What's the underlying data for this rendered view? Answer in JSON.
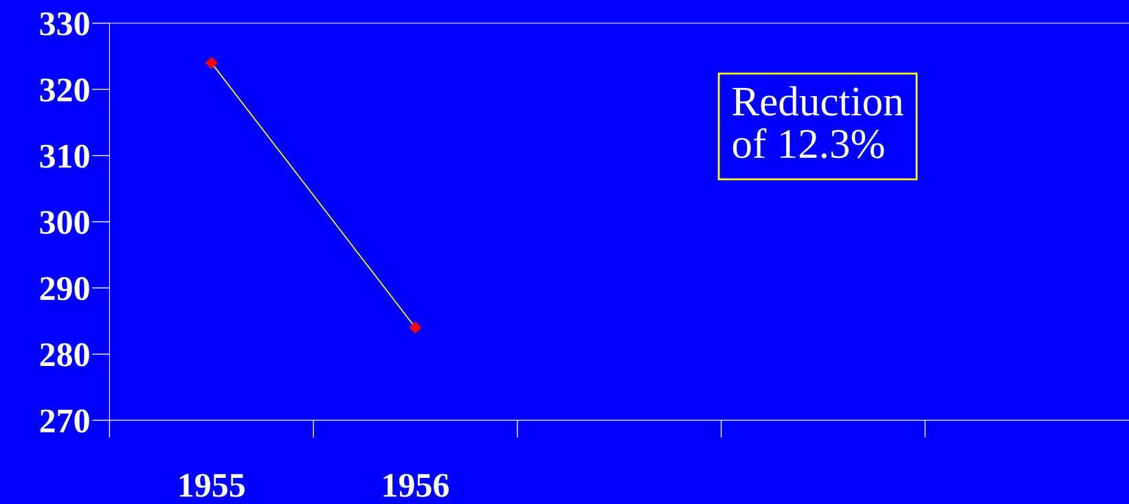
{
  "chart_data": {
    "type": "line",
    "categories": [
      "1955",
      "1956",
      null,
      null,
      null
    ],
    "series": [
      {
        "color": "#ffff00",
        "colors": [
          "#ff0000",
          "#ff0000",
          null,
          null,
          null
        ],
        "values": [
          324,
          284,
          null,
          null,
          null
        ]
      }
    ],
    "ylim": [
      270,
      330
    ],
    "yticks": [
      270,
      280,
      290,
      300,
      310,
      320,
      330
    ],
    "marker": "diamond",
    "line_style": "solid",
    "grid": false,
    "legend": false,
    "annotations": [
      "Reduction\nof 12.3%"
    ]
  }
}
